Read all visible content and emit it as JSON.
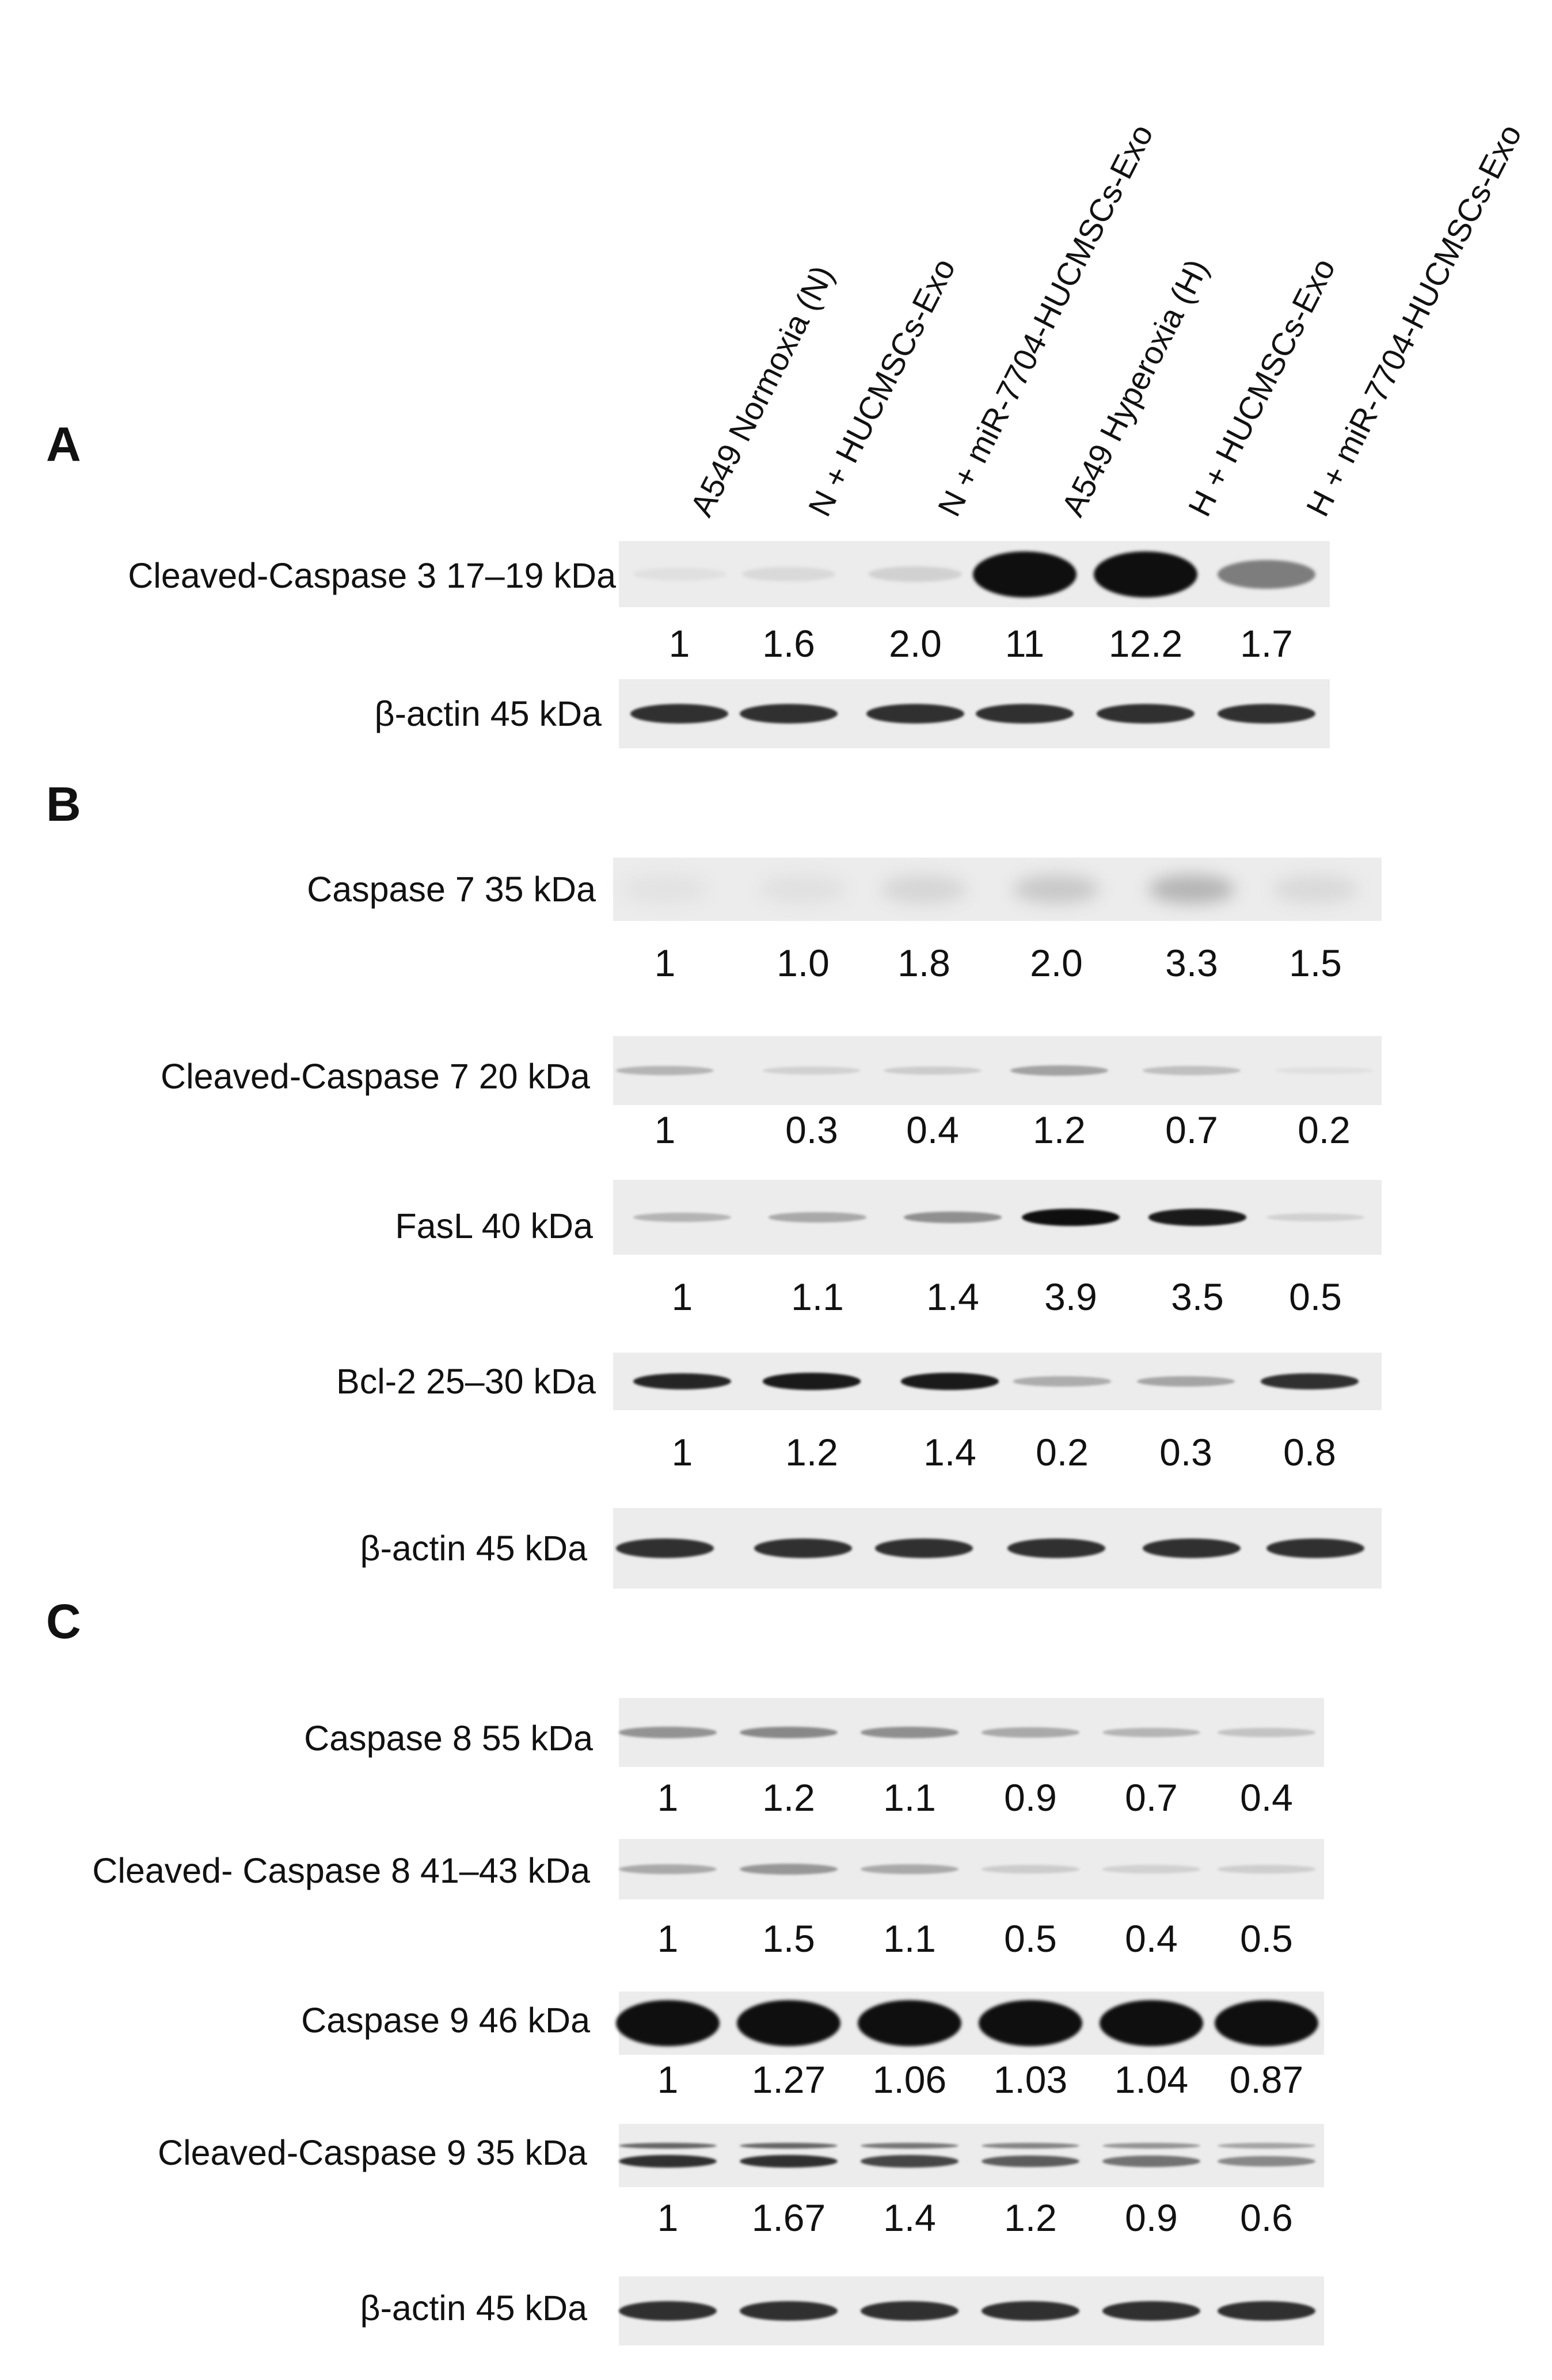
{
  "lanes": [
    "A549 Normoxia (N)",
    "N + HUCMSCs-Exo",
    "N + miR-7704-HUCMSCs-Exo",
    "A549 Hyperoxia (H)",
    "H + HUCMSCs-Exo",
    "H + miR-7704-HUCMSCs-Exo"
  ],
  "panels": [
    {
      "letter": "A",
      "rows": [
        {
          "label": "Cleaved-Caspase 3 17–19 kDa",
          "values": [
            "1",
            "1.6",
            "2.0",
            "11",
            "12.2",
            "1.7"
          ],
          "intensity": [
            0.05,
            0.08,
            0.12,
            1.0,
            1.0,
            0.5
          ]
        },
        {
          "label": "β-actin 45 kDa",
          "values": [],
          "intensity": [
            0.85,
            0.85,
            0.85,
            0.85,
            0.85,
            0.85
          ]
        }
      ]
    },
    {
      "letter": "B",
      "rows": [
        {
          "label": "Caspase 7 35 kDa",
          "values": [
            "1",
            "1.0",
            "1.8",
            "2.0",
            "3.3",
            "1.5"
          ],
          "intensity": [
            0.04,
            0.05,
            0.1,
            0.16,
            0.25,
            0.08
          ]
        },
        {
          "label": "Cleaved-Caspase 7 20 kDa",
          "values": [
            "1",
            "0.3",
            "0.4",
            "1.2",
            "0.7",
            "0.2"
          ],
          "intensity": [
            0.25,
            0.12,
            0.14,
            0.33,
            0.2,
            0.05
          ]
        },
        {
          "label": "FasL 40 kDa",
          "values": [
            "1",
            "1.1",
            "1.4",
            "3.9",
            "3.5",
            "0.5"
          ],
          "intensity": [
            0.25,
            0.3,
            0.42,
            1.0,
            0.95,
            0.12
          ]
        },
        {
          "label": "Bcl-2 25–30 kDa",
          "values": [
            "1",
            "1.2",
            "1.4",
            "0.2",
            "0.3",
            "0.8"
          ],
          "intensity": [
            0.9,
            0.95,
            0.95,
            0.28,
            0.32,
            0.85
          ]
        },
        {
          "label": "β-actin 45 kDa",
          "values": [],
          "intensity": [
            0.85,
            0.85,
            0.85,
            0.85,
            0.85,
            0.85
          ]
        }
      ]
    },
    {
      "letter": "C",
      "rows": [
        {
          "label": "Caspase 8 55 kDa",
          "values": [
            "1",
            "1.2",
            "1.1",
            "0.9",
            "0.7",
            "0.4"
          ],
          "intensity": [
            0.4,
            0.45,
            0.42,
            0.3,
            0.25,
            0.18
          ]
        },
        {
          "label": "Cleaved- Caspase 8 41–43 kDa",
          "values": [
            "1",
            "1.5",
            "1.1",
            "0.5",
            "0.4",
            "0.5"
          ],
          "intensity": [
            0.3,
            0.38,
            0.3,
            0.14,
            0.12,
            0.13
          ]
        },
        {
          "label": "Caspase 9 46 kDa",
          "values": [
            "1",
            "1.27",
            "1.06",
            "1.03",
            "1.04",
            "0.87"
          ],
          "intensity": [
            1.0,
            1.0,
            1.0,
            1.0,
            1.0,
            1.0
          ]
        },
        {
          "label": "Cleaved-Caspase 9 35 kDa",
          "values": [
            "1",
            "1.67",
            "1.4",
            "1.2",
            "0.9",
            "0.6"
          ],
          "intensity": [
            0.85,
            0.85,
            0.75,
            0.65,
            0.55,
            0.45
          ]
        },
        {
          "label": "β-actin 45 kDa",
          "values": [],
          "intensity": [
            0.85,
            0.85,
            0.85,
            0.85,
            0.85,
            0.85
          ]
        }
      ]
    }
  ]
}
